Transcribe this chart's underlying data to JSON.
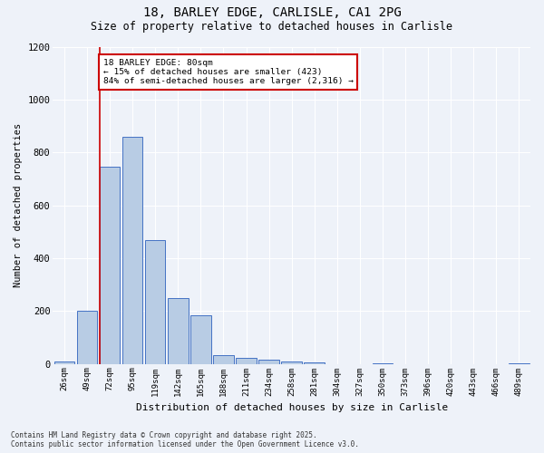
{
  "title_line1": "18, BARLEY EDGE, CARLISLE, CA1 2PG",
  "title_line2": "Size of property relative to detached houses in Carlisle",
  "xlabel": "Distribution of detached houses by size in Carlisle",
  "ylabel": "Number of detached properties",
  "categories": [
    "26sqm",
    "49sqm",
    "72sqm",
    "95sqm",
    "119sqm",
    "142sqm",
    "165sqm",
    "188sqm",
    "211sqm",
    "234sqm",
    "258sqm",
    "281sqm",
    "304sqm",
    "327sqm",
    "350sqm",
    "373sqm",
    "396sqm",
    "420sqm",
    "443sqm",
    "466sqm",
    "489sqm"
  ],
  "values": [
    10,
    200,
    745,
    860,
    467,
    250,
    185,
    33,
    22,
    15,
    10,
    5,
    0,
    0,
    2,
    0,
    0,
    0,
    0,
    0,
    2
  ],
  "bar_color": "#b8cce4",
  "bar_edge_color": "#4472c4",
  "red_line_index": 2,
  "annotation_text": "18 BARLEY EDGE: 80sqm\n← 15% of detached houses are smaller (423)\n84% of semi-detached houses are larger (2,316) →",
  "annotation_box_color": "#ffffff",
  "annotation_box_edge_color": "#cc0000",
  "vline_color": "#cc0000",
  "ylim": [
    0,
    1200
  ],
  "yticks": [
    0,
    200,
    400,
    600,
    800,
    1000,
    1200
  ],
  "background_color": "#eef2f9",
  "grid_color": "#ffffff",
  "footer_line1": "Contains HM Land Registry data © Crown copyright and database right 2025.",
  "footer_line2": "Contains public sector information licensed under the Open Government Licence v3.0."
}
